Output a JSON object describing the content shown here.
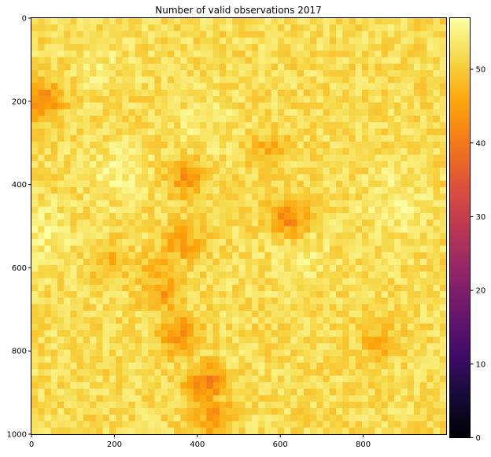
{
  "chart_data": {
    "type": "heatmap",
    "title": "Number of valid observations 2017",
    "xlabel": "",
    "ylabel": "",
    "x_ticks": [
      0,
      200,
      400,
      600,
      800
    ],
    "y_ticks": [
      0,
      200,
      400,
      600,
      800,
      1000
    ],
    "xlim": [
      0,
      1000
    ],
    "ylim": [
      1000,
      0
    ],
    "colormap": "inferno",
    "colorbar": {
      "range": [
        0,
        57
      ],
      "ticks": [
        0,
        10,
        20,
        30,
        40,
        50
      ]
    },
    "grid": false,
    "background_value_range": [
      49,
      55
    ],
    "hotspots": [
      {
        "x": 30,
        "y": 200,
        "value": 42
      },
      {
        "x": 375,
        "y": 385,
        "value": 44
      },
      {
        "x": 365,
        "y": 540,
        "value": 45
      },
      {
        "x": 320,
        "y": 660,
        "value": 45
      },
      {
        "x": 355,
        "y": 760,
        "value": 43
      },
      {
        "x": 420,
        "y": 880,
        "value": 41
      },
      {
        "x": 440,
        "y": 960,
        "value": 44
      },
      {
        "x": 620,
        "y": 480,
        "value": 42
      },
      {
        "x": 570,
        "y": 320,
        "value": 47
      },
      {
        "x": 190,
        "y": 590,
        "value": 47
      },
      {
        "x": 300,
        "y": 610,
        "value": 46
      },
      {
        "x": 840,
        "y": 780,
        "value": 47
      }
    ],
    "bright_regions": [
      {
        "x": 200,
        "y": 370,
        "value": 55
      },
      {
        "x": 420,
        "y": 250,
        "value": 54
      },
      {
        "x": 880,
        "y": 440,
        "value": 55
      },
      {
        "x": 170,
        "y": 110,
        "value": 54
      },
      {
        "x": 20,
        "y": 520,
        "value": 55
      },
      {
        "x": 650,
        "y": 580,
        "value": 54
      }
    ]
  }
}
